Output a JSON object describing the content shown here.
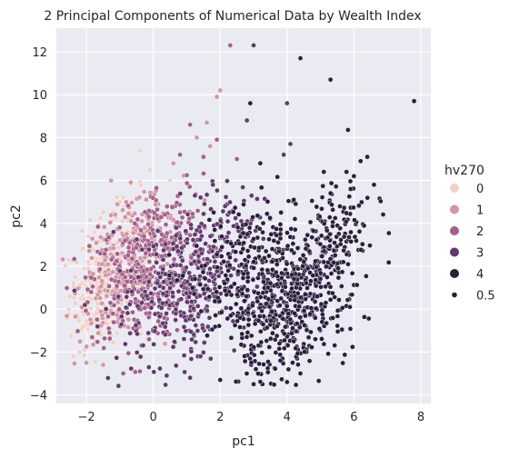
{
  "chart_data": {
    "type": "scatter",
    "title": "2 Principal Components of Numerical Data by Wealth Index",
    "xlabel": "pc1",
    "ylabel": "pc2",
    "xlim": [
      -2.9,
      8.3
    ],
    "ylim": [
      -4.4,
      13.1
    ],
    "xticks": [
      -2,
      0,
      2,
      4,
      6,
      8
    ],
    "yticks": [
      -4,
      -2,
      0,
      2,
      4,
      6,
      8,
      10,
      12
    ],
    "grid": true,
    "legend": {
      "title": "hv270",
      "position": "right",
      "hue_entries": [
        {
          "label": "0",
          "color": "#efd1c6"
        },
        {
          "label": "1",
          "color": "#d195a4"
        },
        {
          "label": "2",
          "color": "#a3608a"
        },
        {
          "label": "3",
          "color": "#603a6b"
        },
        {
          "label": "4",
          "color": "#2c1e3d"
        }
      ],
      "size_entries": [
        {
          "label": "0.5",
          "color": "#222222"
        }
      ]
    },
    "series": [
      {
        "name": "0",
        "color": "#efd1c6",
        "clusters": [
          {
            "cx": -1.6,
            "cy": 1.0,
            "sx": 0.45,
            "sy": 1.3,
            "n": 240
          },
          {
            "cx": -0.8,
            "cy": 3.0,
            "sx": 0.45,
            "sy": 1.2,
            "n": 70
          }
        ],
        "points": [
          [
            -0.4,
            7.4
          ],
          [
            -0.1,
            6.5
          ],
          [
            -0.9,
            5.2
          ],
          [
            0.5,
            6.0
          ],
          [
            -2.2,
            -2.0
          ],
          [
            -2.4,
            -2.2
          ]
        ]
      },
      {
        "name": "1",
        "color": "#d195a4",
        "clusters": [
          {
            "cx": -1.0,
            "cy": 1.5,
            "sx": 0.6,
            "sy": 1.4,
            "n": 200
          },
          {
            "cx": -0.2,
            "cy": 3.6,
            "sx": 0.55,
            "sy": 1.1,
            "n": 80
          }
        ],
        "points": [
          [
            1.6,
            8.7
          ],
          [
            2.0,
            10.2
          ],
          [
            1.3,
            8.0
          ],
          [
            1.9,
            9.9
          ],
          [
            0.6,
            6.8
          ],
          [
            -1.5,
            -2.6
          ],
          [
            -2.0,
            -2.5
          ],
          [
            1.7,
            7.6
          ]
        ]
      },
      {
        "name": "2",
        "color": "#a3608a",
        "clusters": [
          {
            "cx": -0.4,
            "cy": 1.4,
            "sx": 0.75,
            "sy": 1.5,
            "n": 260
          },
          {
            "cx": 0.5,
            "cy": 3.5,
            "sx": 0.6,
            "sy": 1.2,
            "n": 90
          }
        ],
        "points": [
          [
            2.3,
            12.3
          ],
          [
            1.1,
            8.6
          ],
          [
            1.9,
            7.9
          ],
          [
            0.8,
            7.2
          ],
          [
            1.5,
            7.1
          ],
          [
            -0.9,
            -3.0
          ],
          [
            -0.4,
            -2.9
          ],
          [
            2.5,
            7.0
          ]
        ]
      },
      {
        "name": "3",
        "color": "#603a6b",
        "clusters": [
          {
            "cx": 0.8,
            "cy": 0.6,
            "sx": 0.95,
            "sy": 1.5,
            "n": 300
          },
          {
            "cx": 1.8,
            "cy": 3.5,
            "sx": 0.7,
            "sy": 1.2,
            "n": 110
          }
        ],
        "points": [
          [
            3.0,
            12.3
          ],
          [
            2.8,
            8.8
          ],
          [
            4.1,
            7.7
          ],
          [
            4.0,
            9.6
          ],
          [
            1.1,
            -3.2
          ],
          [
            0.4,
            -3.1
          ],
          [
            3.9,
            7.2
          ]
        ]
      },
      {
        "name": "4",
        "color": "#2c1e3d",
        "clusters": [
          {
            "cx": 4.0,
            "cy": 0.2,
            "sx": 0.9,
            "sy": 1.5,
            "n": 520
          },
          {
            "cx": 2.6,
            "cy": 2.0,
            "sx": 0.8,
            "sy": 1.5,
            "n": 180
          },
          {
            "cx": 5.3,
            "cy": 3.2,
            "sx": 0.6,
            "sy": 1.3,
            "n": 160
          }
        ],
        "points": [
          [
            7.8,
            9.7
          ],
          [
            5.3,
            10.7
          ],
          [
            4.4,
            11.7
          ],
          [
            2.9,
            9.6
          ],
          [
            6.4,
            7.1
          ],
          [
            6.2,
            6.9
          ],
          [
            5.1,
            6.4
          ],
          [
            3.2,
            6.8
          ],
          [
            4.2,
            5.1
          ],
          [
            5.9,
            5.6
          ],
          [
            6.0,
            6.2
          ],
          [
            6.6,
            5.8
          ],
          [
            2.0,
            -3.3
          ],
          [
            3.0,
            -3.5
          ],
          [
            4.0,
            -3.4
          ],
          [
            3.8,
            -2.4
          ],
          [
            4.4,
            -3.0
          ]
        ]
      }
    ]
  }
}
